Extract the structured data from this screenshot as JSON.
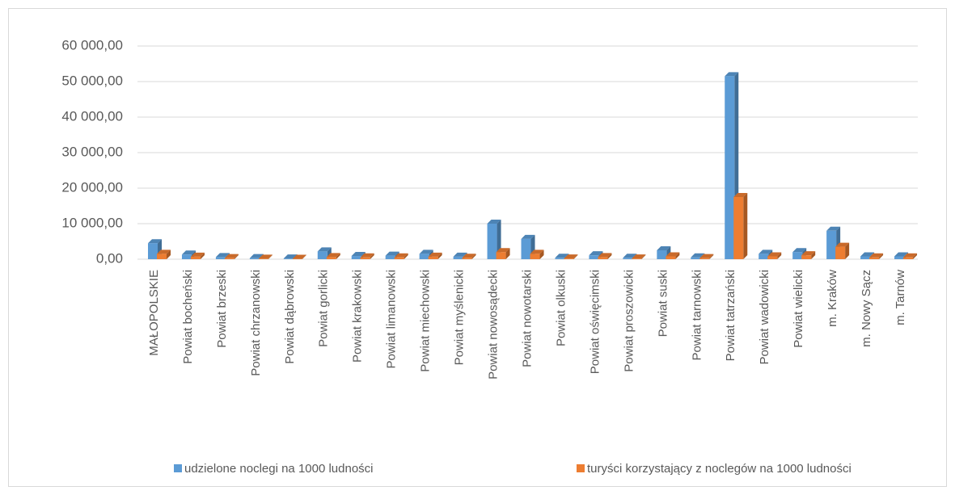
{
  "chart_data": {
    "type": "bar3d",
    "categories": [
      "MAŁOPOLSKIE",
      "Powiat bocheński",
      "Powiat brzeski",
      "Powiat chrzanowski",
      "Powiat dąbrowski",
      "Powiat gorlicki",
      "Powiat krakowski",
      "Powiat limanowski",
      "Powiat miechowski",
      "Powiat myślenicki",
      "Powiat nowosądecki",
      "Powiat nowotarski",
      "Powiat olkuski",
      "Powiat oświęcimski",
      "Powiat proszowicki",
      "Powiat suski",
      "Powiat tarnowski",
      "Powiat tatrzański",
      "Powiat wadowicki",
      "Powiat wielicki",
      "m. Kraków",
      "m. Nowy Sącz",
      "m. Tarnów"
    ],
    "series": [
      {
        "name": "udzielone noclegi na 1000 ludności",
        "color": "#5b9bd5",
        "values": [
          4500,
          1300,
          600,
          300,
          200,
          2200,
          900,
          1000,
          1500,
          700,
          10000,
          5700,
          400,
          1100,
          400,
          2500,
          500,
          51500,
          1500,
          2000,
          8000,
          800,
          800
        ]
      },
      {
        "name": "turyści korzystający z noclegów na 1000 ludności",
        "color": "#ed7d31",
        "values": [
          1500,
          700,
          300,
          150,
          100,
          600,
          500,
          500,
          700,
          400,
          2000,
          1500,
          200,
          600,
          200,
          800,
          300,
          17500,
          800,
          1100,
          3500,
          500,
          500
        ]
      }
    ],
    "ylim": [
      0,
      60000
    ],
    "yticks": [
      {
        "value": 0,
        "label": "0,00"
      },
      {
        "value": 10000,
        "label": "10 000,00"
      },
      {
        "value": 20000,
        "label": "20 000,00"
      },
      {
        "value": 30000,
        "label": "30 000,00"
      },
      {
        "value": 40000,
        "label": "40 000,00"
      },
      {
        "value": 50000,
        "label": "50 000,00"
      },
      {
        "value": 60000,
        "label": "60 000,00"
      }
    ],
    "grid": true,
    "legend": "bottom"
  }
}
